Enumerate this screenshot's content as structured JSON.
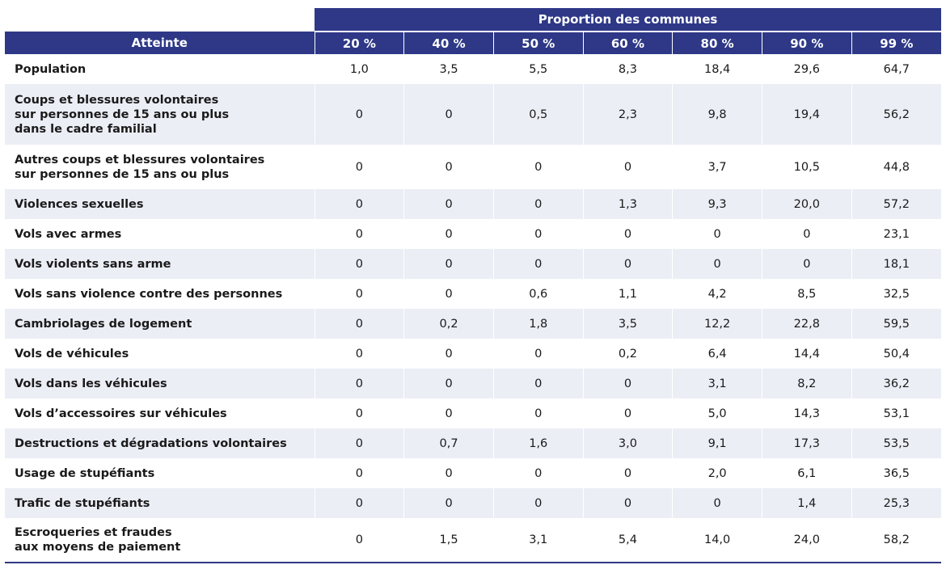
{
  "table": {
    "super_header": "Proportion des communes",
    "row_header": "Atteinte",
    "columns": [
      "20 %",
      "40 %",
      "50 %",
      "60 %",
      "80 %",
      "90 %",
      "99 %"
    ],
    "rows": [
      {
        "label": "Population",
        "values": [
          "1,0",
          "3,5",
          "5,5",
          "8,3",
          "18,4",
          "29,6",
          "64,7"
        ]
      },
      {
        "label": "Coups et blessures volontaires\nsur personnes de 15 ans ou plus\ndans le cadre familial",
        "values": [
          "0",
          "0",
          "0,5",
          "2,3",
          "9,8",
          "19,4",
          "56,2"
        ]
      },
      {
        "label": "Autres coups et blessures volontaires\nsur personnes de 15 ans ou plus",
        "values": [
          "0",
          "0",
          "0",
          "0",
          "3,7",
          "10,5",
          "44,8"
        ]
      },
      {
        "label": "Violences sexuelles",
        "values": [
          "0",
          "0",
          "0",
          "1,3",
          "9,3",
          "20,0",
          "57,2"
        ]
      },
      {
        "label": "Vols avec armes",
        "values": [
          "0",
          "0",
          "0",
          "0",
          "0",
          "0",
          "23,1"
        ]
      },
      {
        "label": "Vols violents sans arme",
        "values": [
          "0",
          "0",
          "0",
          "0",
          "0",
          "0",
          "18,1"
        ]
      },
      {
        "label": "Vols sans violence contre des personnes",
        "values": [
          "0",
          "0",
          "0,6",
          "1,1",
          "4,2",
          "8,5",
          "32,5"
        ]
      },
      {
        "label": "Cambriolages de logement",
        "values": [
          "0",
          "0,2",
          "1,8",
          "3,5",
          "12,2",
          "22,8",
          "59,5"
        ]
      },
      {
        "label": "Vols de véhicules",
        "values": [
          "0",
          "0",
          "0",
          "0,2",
          "6,4",
          "14,4",
          "50,4"
        ]
      },
      {
        "label": "Vols dans les véhicules",
        "values": [
          "0",
          "0",
          "0",
          "0",
          "3,1",
          "8,2",
          "36,2"
        ]
      },
      {
        "label": "Vols d’accessoires sur véhicules",
        "values": [
          "0",
          "0",
          "0",
          "0",
          "5,0",
          "14,3",
          "53,1"
        ]
      },
      {
        "label": "Destructions et dégradations volontaires",
        "values": [
          "0",
          "0,7",
          "1,6",
          "3,0",
          "9,1",
          "17,3",
          "53,5"
        ]
      },
      {
        "label": "Usage de stupéfiants",
        "values": [
          "0",
          "0",
          "0",
          "0",
          "2,0",
          "6,1",
          "36,5"
        ]
      },
      {
        "label": "Trafic de stupéfiants",
        "values": [
          "0",
          "0",
          "0",
          "0",
          "0",
          "1,4",
          "25,3"
        ]
      },
      {
        "label": "Escroqueries et fraudes\naux moyens de paiement",
        "values": [
          "0",
          "1,5",
          "3,1",
          "5,4",
          "14,0",
          "24,0",
          "58,2"
        ]
      }
    ]
  },
  "colors": {
    "header_bg": "#2e3887",
    "alt_row_bg": "#eceef6"
  }
}
